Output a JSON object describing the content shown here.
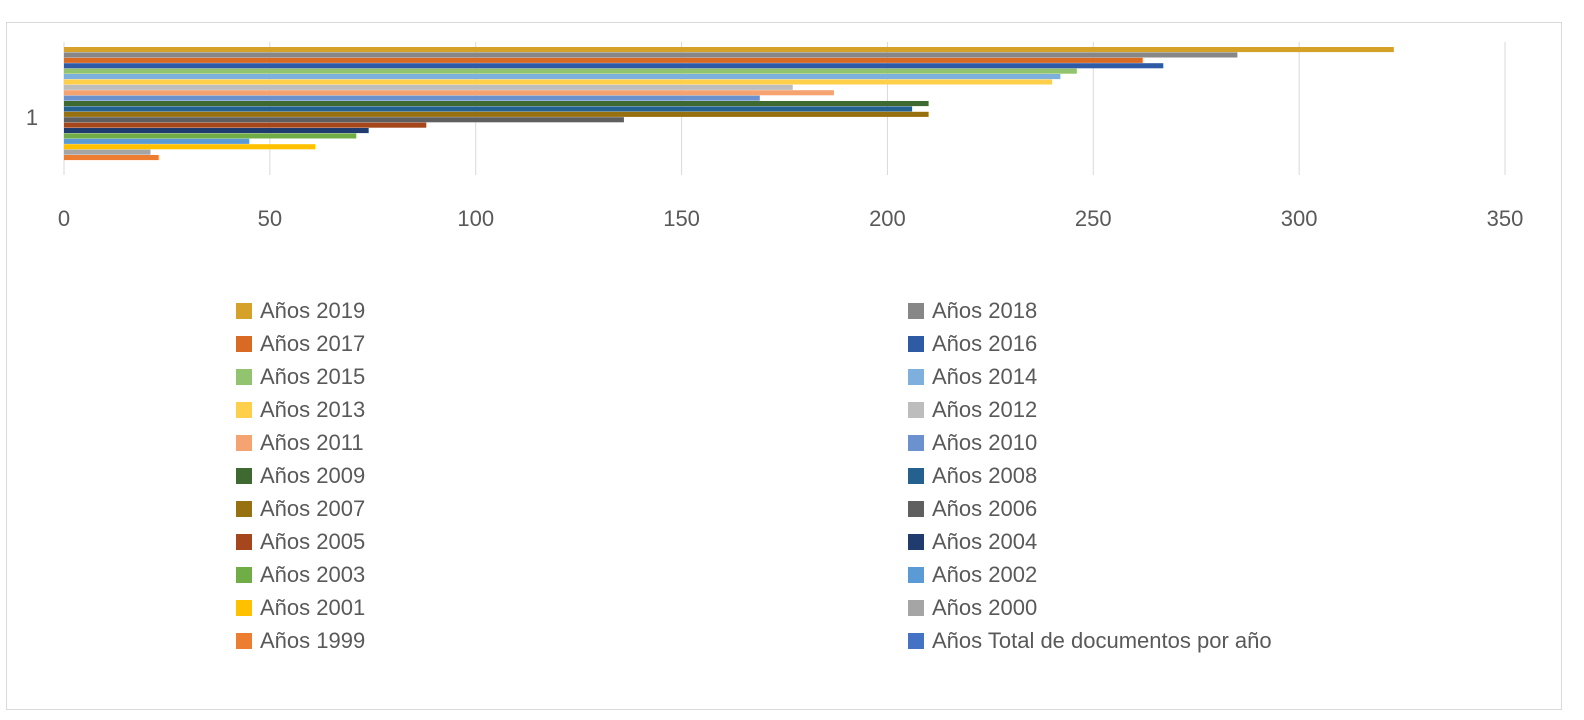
{
  "chart_data": {
    "type": "bar",
    "orientation": "horizontal",
    "categories": [
      "1"
    ],
    "xlim": [
      0,
      350
    ],
    "x_ticks": [
      "0",
      "50",
      "100",
      "150",
      "200",
      "250",
      "300",
      "350"
    ],
    "grid": "vertical",
    "legend_position": "bottom",
    "series": [
      {
        "name": "Años 2019",
        "color": "#d6a129",
        "values": [
          323
        ]
      },
      {
        "name": "Años 2018",
        "color": "#878787",
        "values": [
          285
        ]
      },
      {
        "name": "Años 2017",
        "color": "#d86a24",
        "values": [
          262
        ]
      },
      {
        "name": "Años 2016",
        "color": "#2f5aa5",
        "values": [
          267
        ]
      },
      {
        "name": "Años 2015",
        "color": "#92c36e",
        "values": [
          246
        ]
      },
      {
        "name": "Años 2014",
        "color": "#7db0dd",
        "values": [
          242
        ]
      },
      {
        "name": "Años 2013",
        "color": "#fdcf4a",
        "values": [
          240
        ]
      },
      {
        "name": "Años 2012",
        "color": "#bdbdbd",
        "values": [
          177
        ]
      },
      {
        "name": "Años 2011",
        "color": "#f4a371",
        "values": [
          187
        ]
      },
      {
        "name": "Años 2010",
        "color": "#6b92cf",
        "values": [
          169
        ]
      },
      {
        "name": "Años 2009",
        "color": "#3e6930",
        "values": [
          210
        ]
      },
      {
        "name": "Años 2008",
        "color": "#25618f",
        "values": [
          206
        ]
      },
      {
        "name": "Años 2007",
        "color": "#97710f",
        "values": [
          210
        ]
      },
      {
        "name": "Años 2006",
        "color": "#5f5f5f",
        "values": [
          136
        ]
      },
      {
        "name": "Años 2005",
        "color": "#a6461d",
        "values": [
          88
        ]
      },
      {
        "name": "Años 2004",
        "color": "#203c6e",
        "values": [
          74
        ]
      },
      {
        "name": "Años 2003",
        "color": "#70ad47",
        "values": [
          71
        ]
      },
      {
        "name": "Años 2002",
        "color": "#5b9bd5",
        "values": [
          45
        ]
      },
      {
        "name": "Años 2001",
        "color": "#ffc000",
        "values": [
          61
        ]
      },
      {
        "name": "Años 2000",
        "color": "#a5a5a5",
        "values": [
          21
        ]
      },
      {
        "name": "Años 1999",
        "color": "#ed7d31",
        "values": [
          23
        ]
      },
      {
        "name": "Años Total de documentos por año",
        "color": "#4472c4",
        "values": [
          0
        ]
      }
    ]
  }
}
